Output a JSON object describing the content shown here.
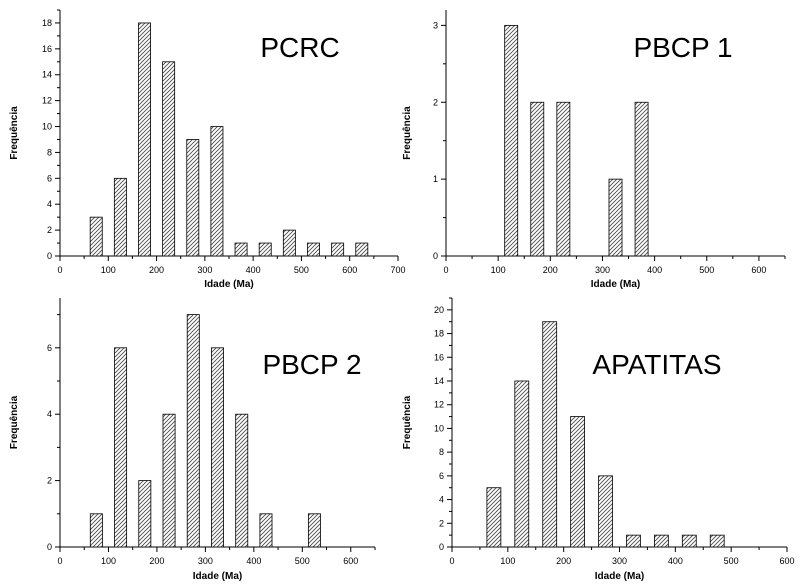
{
  "chart_data": [
    {
      "type": "bar",
      "title": "PCRC",
      "xlabel": "Idade (Ma)",
      "ylabel": "Frequência",
      "xlim": [
        0,
        700
      ],
      "ylim": [
        0,
        19
      ],
      "xticks": [
        0,
        100,
        200,
        300,
        400,
        500,
        600,
        700
      ],
      "yticks": [
        0,
        2,
        4,
        6,
        8,
        10,
        12,
        14,
        16,
        18
      ],
      "bin_width": 50,
      "bar_width": 25,
      "x": [
        75,
        125,
        175,
        225,
        275,
        325,
        375,
        425,
        475,
        525,
        575,
        625
      ],
      "values": [
        3,
        6,
        18,
        15,
        9,
        10,
        1,
        1,
        2,
        1,
        1,
        1
      ],
      "grid": false,
      "bar_pattern": "diagonal-hatch"
    },
    {
      "type": "bar",
      "title": "PBCP 1",
      "xlabel": "Idade (Ma)",
      "ylabel": "Frequência",
      "xlim": [
        0,
        650
      ],
      "ylim": [
        0,
        3.2
      ],
      "xticks": [
        0,
        100,
        200,
        300,
        400,
        500,
        600
      ],
      "yticks": [
        0,
        1,
        2,
        3
      ],
      "bin_width": 50,
      "bar_width": 25,
      "x": [
        125,
        175,
        225,
        325,
        375
      ],
      "values": [
        3,
        2,
        2,
        1,
        2
      ],
      "grid": false,
      "bar_pattern": "diagonal-hatch"
    },
    {
      "type": "bar",
      "title": "PBCP 2",
      "xlabel": "Idade (Ma)",
      "ylabel": "Frequência",
      "xlim": [
        0,
        650
      ],
      "ylim": [
        0,
        7.5
      ],
      "xticks": [
        0,
        100,
        200,
        300,
        400,
        500,
        600
      ],
      "yticks": [
        0,
        2,
        4,
        6
      ],
      "bin_width": 50,
      "bar_width": 25,
      "x": [
        75,
        125,
        175,
        225,
        275,
        325,
        375,
        425,
        525
      ],
      "values": [
        1,
        6,
        2,
        4,
        7,
        6,
        4,
        1,
        1
      ],
      "grid": false,
      "bar_pattern": "diagonal-hatch"
    },
    {
      "type": "bar",
      "title": "APATITAS",
      "xlabel": "Idade (Ma)",
      "ylabel": "Frequência",
      "xlim": [
        0,
        600
      ],
      "ylim": [
        0,
        21
      ],
      "xticks": [
        0,
        100,
        200,
        300,
        400,
        500,
        600
      ],
      "yticks": [
        0,
        2,
        4,
        6,
        8,
        10,
        12,
        14,
        16,
        18,
        20
      ],
      "bin_width": 50,
      "bar_width": 25,
      "x": [
        75,
        125,
        175,
        225,
        275,
        325,
        375,
        425,
        475
      ],
      "values": [
        5,
        14,
        19,
        11,
        6,
        1,
        1,
        1,
        1
      ],
      "grid": false,
      "bar_pattern": "diagonal-hatch"
    }
  ],
  "colors": {
    "bar_fill": "#ffffff",
    "hatch": "#444444",
    "axis": "#000000"
  }
}
